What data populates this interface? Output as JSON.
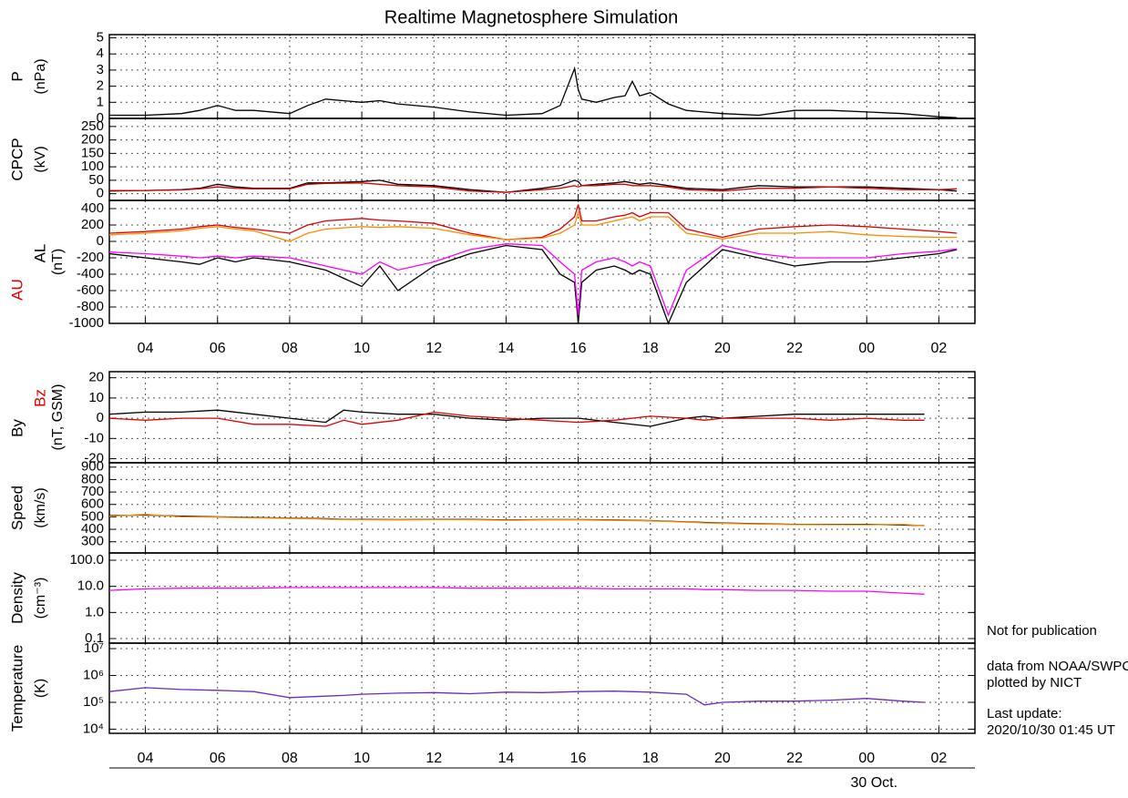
{
  "title": "Realtime Magnetosphere Simulation",
  "notes": [
    "Not for publication",
    "data from NOAA/SWPC",
    "plotted by NICT",
    "Last update:",
    "2020/10/30 01:45 UT"
  ],
  "chart_data": [
    {
      "type": "line",
      "ylabel": "P",
      "yunit": "(nPa)",
      "grid": true,
      "xlim": [
        3,
        27
      ],
      "xticks": [
        4,
        6,
        8,
        10,
        12,
        14,
        16,
        18,
        20,
        22,
        24,
        26
      ],
      "ylim": [
        0,
        5.2
      ],
      "yticks": [
        0,
        1,
        2,
        3,
        4,
        5
      ],
      "x": [
        3,
        4,
        5,
        5.5,
        6,
        6.5,
        7,
        8,
        8.5,
        9,
        10,
        10.5,
        11,
        12,
        13,
        14,
        15,
        15.5,
        15.9,
        16,
        16.1,
        16.5,
        17,
        17.3,
        17.5,
        17.7,
        18,
        18.5,
        19,
        20,
        21,
        22,
        23,
        24,
        25,
        26,
        26.5
      ],
      "series": [
        {
          "color": "#000000",
          "values": [
            0.2,
            0.2,
            0.3,
            0.5,
            0.8,
            0.5,
            0.5,
            0.3,
            0.8,
            1.2,
            1.0,
            1.1,
            0.9,
            0.7,
            0.4,
            0.2,
            0.3,
            0.8,
            3.1,
            1.8,
            1.2,
            1.0,
            1.3,
            1.4,
            2.3,
            1.4,
            1.6,
            0.9,
            0.5,
            0.3,
            0.2,
            0.5,
            0.5,
            0.4,
            0.3,
            0.1,
            0.05
          ]
        }
      ]
    },
    {
      "type": "line",
      "ylabel": "CPCP",
      "yunit": "(kV)",
      "grid": true,
      "xlim": [
        3,
        27
      ],
      "xticks": [
        4,
        6,
        8,
        10,
        12,
        14,
        16,
        18,
        20,
        22,
        24,
        26
      ],
      "ylim": [
        -25,
        280
      ],
      "yticks": [
        0,
        50,
        100,
        150,
        200,
        250
      ],
      "x": [
        3,
        4,
        5,
        5.5,
        6,
        6.5,
        7,
        8,
        8.5,
        9,
        10,
        10.5,
        11,
        12,
        13,
        14,
        15,
        15.5,
        15.9,
        16,
        16.1,
        16.5,
        17,
        17.3,
        17.5,
        17.7,
        18,
        18.5,
        19,
        20,
        21,
        22,
        23,
        24,
        25,
        26,
        26.5
      ],
      "series": [
        {
          "color": "#000000",
          "values": [
            10,
            12,
            15,
            20,
            35,
            25,
            20,
            20,
            40,
            40,
            45,
            50,
            35,
            30,
            15,
            5,
            20,
            30,
            50,
            45,
            30,
            35,
            40,
            45,
            40,
            35,
            40,
            30,
            20,
            15,
            30,
            25,
            25,
            25,
            20,
            15,
            10
          ]
        },
        {
          "color": "#e00000",
          "values": [
            12,
            12,
            14,
            18,
            25,
            20,
            18,
            18,
            35,
            38,
            40,
            35,
            30,
            25,
            10,
            5,
            15,
            20,
            30,
            25,
            30,
            30,
            35,
            35,
            30,
            30,
            30,
            25,
            15,
            10,
            20,
            20,
            25,
            20,
            15,
            15,
            18
          ]
        }
      ]
    },
    {
      "type": "line",
      "yunit": "(nT)",
      "grid": true,
      "xlim": [
        3,
        27
      ],
      "xticks": [
        {
          "value": 4,
          "label": "04"
        },
        {
          "value": 6,
          "label": "06"
        },
        {
          "value": 8,
          "label": "08"
        },
        10,
        12,
        14,
        16,
        18,
        20,
        22,
        {
          "value": 24,
          "label": "00"
        },
        {
          "value": 26,
          "label": "02"
        }
      ],
      "ylim": [
        -1000,
        500
      ],
      "yticks": [
        400,
        200,
        0,
        -200,
        -400,
        -600,
        -800,
        -1000
      ],
      "x": [
        3,
        4,
        5,
        5.5,
        6,
        6.5,
        7,
        8,
        8.5,
        9,
        10,
        10.5,
        11,
        12,
        13,
        14,
        15,
        15.5,
        15.9,
        16,
        16.1,
        16.5,
        17,
        17.3,
        17.5,
        17.7,
        18,
        18.5,
        19,
        20,
        21,
        22,
        23,
        24,
        25,
        26,
        26.5
      ],
      "series": [
        {
          "name": "AU",
          "color": "#e00000",
          "values": [
            100,
            120,
            150,
            180,
            200,
            170,
            150,
            100,
            200,
            250,
            280,
            260,
            250,
            220,
            100,
            20,
            50,
            150,
            300,
            450,
            250,
            250,
            300,
            320,
            350,
            300,
            350,
            350,
            150,
            50,
            150,
            180,
            200,
            180,
            150,
            120,
            100
          ]
        },
        {
          "color": "#ff8c00",
          "values": [
            80,
            100,
            130,
            160,
            180,
            150,
            130,
            0,
            100,
            150,
            180,
            170,
            180,
            160,
            80,
            20,
            40,
            100,
            200,
            350,
            200,
            200,
            250,
            280,
            300,
            250,
            300,
            300,
            100,
            30,
            100,
            100,
            120,
            80,
            60,
            50,
            50
          ]
        },
        {
          "name": "AL",
          "color": "#000000",
          "values": [
            -150,
            -200,
            -250,
            -280,
            -200,
            -250,
            -200,
            -250,
            -300,
            -350,
            -550,
            -300,
            -600,
            -300,
            -150,
            -50,
            -100,
            -400,
            -500,
            -1000,
            -500,
            -350,
            -300,
            -350,
            -400,
            -350,
            -400,
            -1000,
            -500,
            -100,
            -200,
            -300,
            -250,
            -250,
            -200,
            -150,
            -100
          ]
        },
        {
          "color": "#ff00ff",
          "values": [
            -130,
            -150,
            -180,
            -200,
            -180,
            -200,
            -180,
            -200,
            -250,
            -300,
            -400,
            -250,
            -350,
            -250,
            -100,
            -30,
            -50,
            -250,
            -400,
            -900,
            -350,
            -250,
            -200,
            -250,
            -300,
            -250,
            -300,
            -900,
            -350,
            -50,
            -150,
            -200,
            -200,
            -200,
            -150,
            -120,
            -90
          ]
        }
      ]
    },
    {
      "type": "line",
      "yunit": "(nT, GSM)",
      "grid": true,
      "xlim": [
        3,
        27
      ],
      "xticks": [
        4,
        6,
        8,
        10,
        12,
        14,
        16,
        18,
        20,
        22,
        24,
        26
      ],
      "ylim": [
        -22,
        23
      ],
      "yticks": [
        20,
        10,
        0,
        -10,
        -20
      ],
      "x": [
        3,
        4,
        5,
        6,
        7,
        8,
        9,
        9.5,
        10,
        11,
        12,
        13,
        14,
        15,
        16,
        17,
        18,
        19,
        19.5,
        20,
        21,
        22,
        23,
        24,
        25,
        25.6
      ],
      "series": [
        {
          "name": "By",
          "color": "#000000",
          "values": [
            2,
            3,
            3,
            4,
            2,
            0,
            -2,
            4,
            3,
            2,
            2,
            0,
            -1,
            0,
            0,
            -2,
            -4,
            0,
            1,
            0,
            1,
            2,
            2,
            2,
            2,
            2
          ]
        },
        {
          "name": "Bz",
          "color": "#e00000",
          "values": [
            0,
            -1,
            0,
            0,
            -3,
            -3,
            -4,
            -1,
            -3,
            -1,
            3,
            1,
            0,
            -1,
            -2,
            -1,
            1,
            0,
            -1,
            0,
            0,
            0,
            -1,
            0,
            -1,
            -1
          ]
        }
      ]
    },
    {
      "type": "line",
      "ylabel": "Speed",
      "yunit": "(km/s)",
      "grid": true,
      "xlim": [
        3,
        27
      ],
      "xticks": [
        4,
        6,
        8,
        10,
        12,
        14,
        16,
        18,
        20,
        22,
        24,
        26
      ],
      "ylim": [
        210,
        935
      ],
      "yticks": [
        900,
        800,
        700,
        600,
        500,
        400,
        300
      ],
      "x": [
        3,
        4,
        5,
        6,
        7,
        8,
        9,
        9.5,
        10,
        11,
        12,
        13,
        14,
        15,
        16,
        17,
        18,
        19,
        19.5,
        20,
        21,
        22,
        23,
        24,
        25,
        25.6
      ],
      "series": [
        {
          "color": "#000000",
          "values": [
            510,
            515,
            505,
            500,
            495,
            490,
            485,
            480,
            480,
            478,
            480,
            480,
            475,
            478,
            478,
            475,
            470,
            460,
            455,
            450,
            445,
            440,
            440,
            440,
            435,
            430
          ]
        },
        {
          "color": "#ff8c00",
          "values": [
            505,
            520,
            500,
            498,
            492,
            488,
            482,
            478,
            477,
            476,
            478,
            477,
            473,
            476,
            476,
            472,
            468,
            458,
            452,
            448,
            442,
            438,
            437,
            436,
            440,
            428
          ]
        }
      ]
    },
    {
      "type": "line",
      "ylabel": "Density",
      "yunit": "(cm⁻³)",
      "grid": true,
      "log_y": true,
      "xlim": [
        3,
        27
      ],
      "xticks": [
        4,
        6,
        8,
        10,
        12,
        14,
        16,
        18,
        20,
        22,
        24,
        26
      ],
      "ylim": [
        0.067,
        190
      ],
      "yticks": [
        {
          "value": 100,
          "label": "100.0"
        },
        {
          "value": 10,
          "label": "10.0"
        },
        {
          "value": 1,
          "label": "1.0"
        },
        0.1
      ],
      "x": [
        3,
        4,
        5,
        6,
        7,
        8,
        9,
        9.5,
        10,
        11,
        12,
        13,
        14,
        15,
        16,
        17,
        18,
        19,
        19.5,
        20,
        21,
        22,
        23,
        24,
        25,
        25.6
      ],
      "series": [
        {
          "color": "#ff00ff",
          "values": [
            7,
            8,
            8.5,
            8.5,
            8.5,
            9,
            9,
            9,
            9,
            9,
            9,
            8.5,
            8.5,
            8.5,
            8.5,
            8,
            8,
            8,
            7.5,
            7.5,
            7,
            7,
            6.5,
            6.5,
            5.5,
            5
          ]
        }
      ]
    },
    {
      "type": "line",
      "ylabel": "Temperature",
      "yunit": "(K)",
      "grid": true,
      "log_y": true,
      "xlabel": "30 Oct.",
      "xlim": [
        3,
        27
      ],
      "xticks": [
        {
          "value": 4,
          "label": "04"
        },
        {
          "value": 6,
          "label": "06"
        },
        {
          "value": 8,
          "label": "08"
        },
        10,
        12,
        14,
        16,
        18,
        20,
        22,
        {
          "value": 24,
          "label": "00"
        },
        {
          "value": 26,
          "label": "02"
        }
      ],
      "ylim": [
        7000,
        16000000
      ],
      "yticks": [
        {
          "value": 10000000,
          "label": "10⁷"
        },
        {
          "value": 1000000,
          "label": "10⁶"
        },
        {
          "value": 100000,
          "label": "10⁵"
        },
        {
          "value": 10000,
          "label": "10⁴"
        }
      ],
      "x": [
        3,
        4,
        5,
        6,
        7,
        8,
        9,
        9.5,
        10,
        11,
        12,
        13,
        14,
        15,
        16,
        17,
        18,
        19,
        19.5,
        20,
        21,
        22,
        23,
        24,
        25,
        25.6
      ],
      "series": [
        {
          "color": "#6a2cb8",
          "values": [
            250000,
            350000,
            300000,
            280000,
            250000,
            150000,
            170000,
            180000,
            200000,
            220000,
            230000,
            210000,
            240000,
            230000,
            250000,
            260000,
            240000,
            200000,
            80000,
            100000,
            110000,
            110000,
            120000,
            140000,
            110000,
            100000
          ]
        }
      ]
    }
  ]
}
